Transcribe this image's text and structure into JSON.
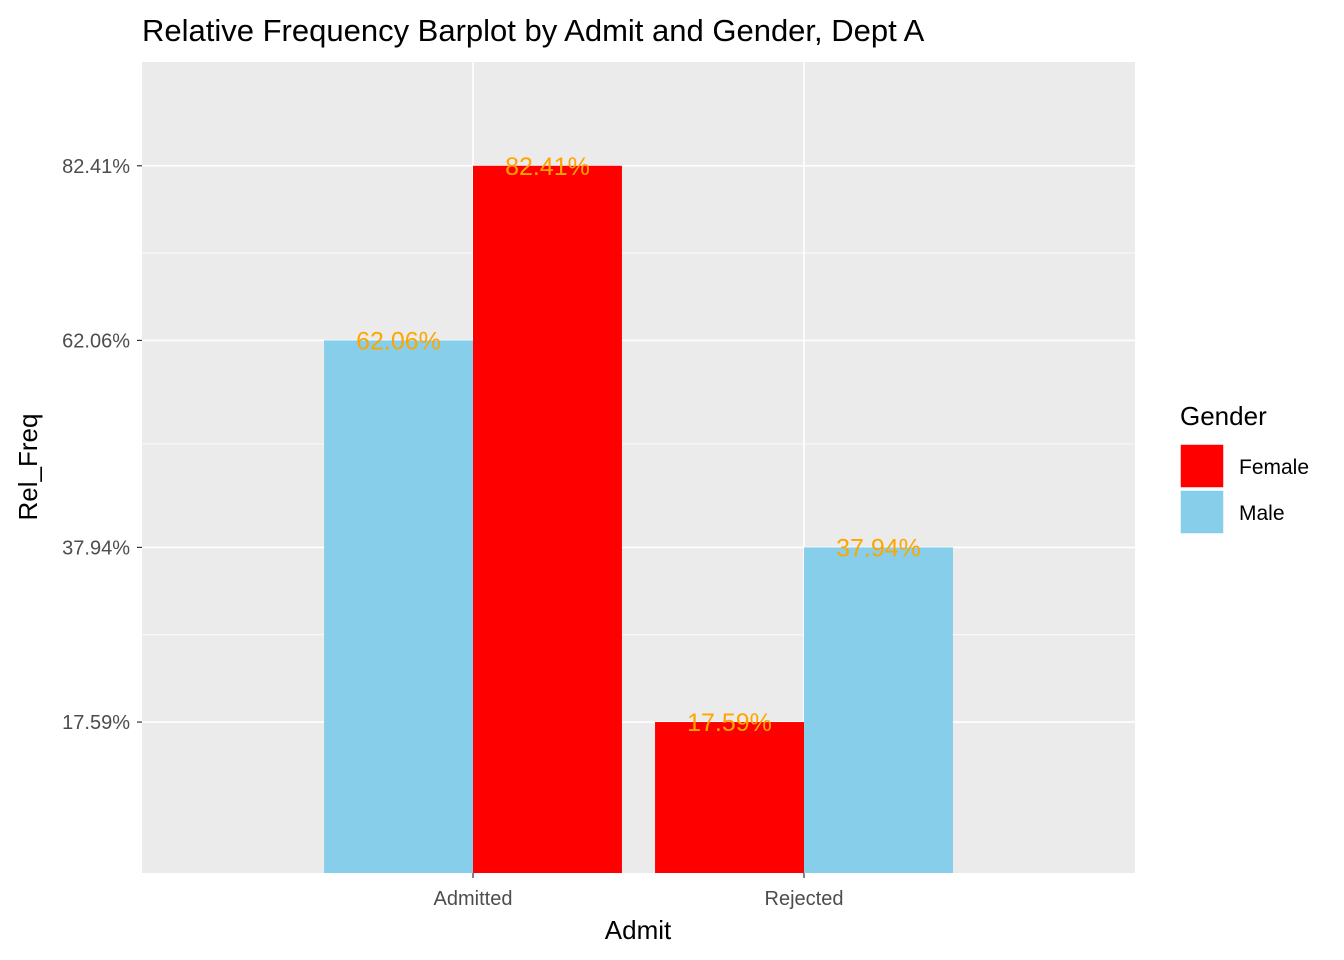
{
  "chart_data": {
    "type": "bar",
    "title": "Relative Frequency Barplot by Admit and Gender, Dept A",
    "xlabel": "Admit",
    "ylabel": "Rel_Freq",
    "categories": [
      "Admitted",
      "Rejected"
    ],
    "series": [
      {
        "name": "Male",
        "color": "#87CEEB",
        "values": [
          62.06,
          37.94
        ]
      },
      {
        "name": "Female",
        "color": "#FF0000",
        "values": [
          82.41,
          17.59
        ]
      }
    ],
    "bar_order": [
      {
        "category": "Admitted",
        "series": "Male"
      },
      {
        "category": "Admitted",
        "series": "Female"
      },
      {
        "category": "Rejected",
        "series": "Female"
      },
      {
        "category": "Rejected",
        "series": "Male"
      }
    ],
    "y_ticks": [
      "17.59%",
      "37.94%",
      "62.06%",
      "82.41%"
    ],
    "y_tick_values": [
      17.59,
      37.94,
      62.06,
      82.41
    ],
    "data_labels": {
      "Admitted": {
        "Male": "62.06%",
        "Female": "82.41%"
      },
      "Rejected": {
        "Female": "17.59%",
        "Male": "37.94%"
      }
    },
    "data_label_color": "#FFA500",
    "ylim": [
      0,
      94.5
    ],
    "grid": true,
    "panel_background": "#EBEBEB",
    "legend": {
      "title": "Gender",
      "position": "right",
      "entries": [
        {
          "label": "Female",
          "color": "#FF0000"
        },
        {
          "label": "Male",
          "color": "#87CEEB"
        }
      ]
    }
  }
}
